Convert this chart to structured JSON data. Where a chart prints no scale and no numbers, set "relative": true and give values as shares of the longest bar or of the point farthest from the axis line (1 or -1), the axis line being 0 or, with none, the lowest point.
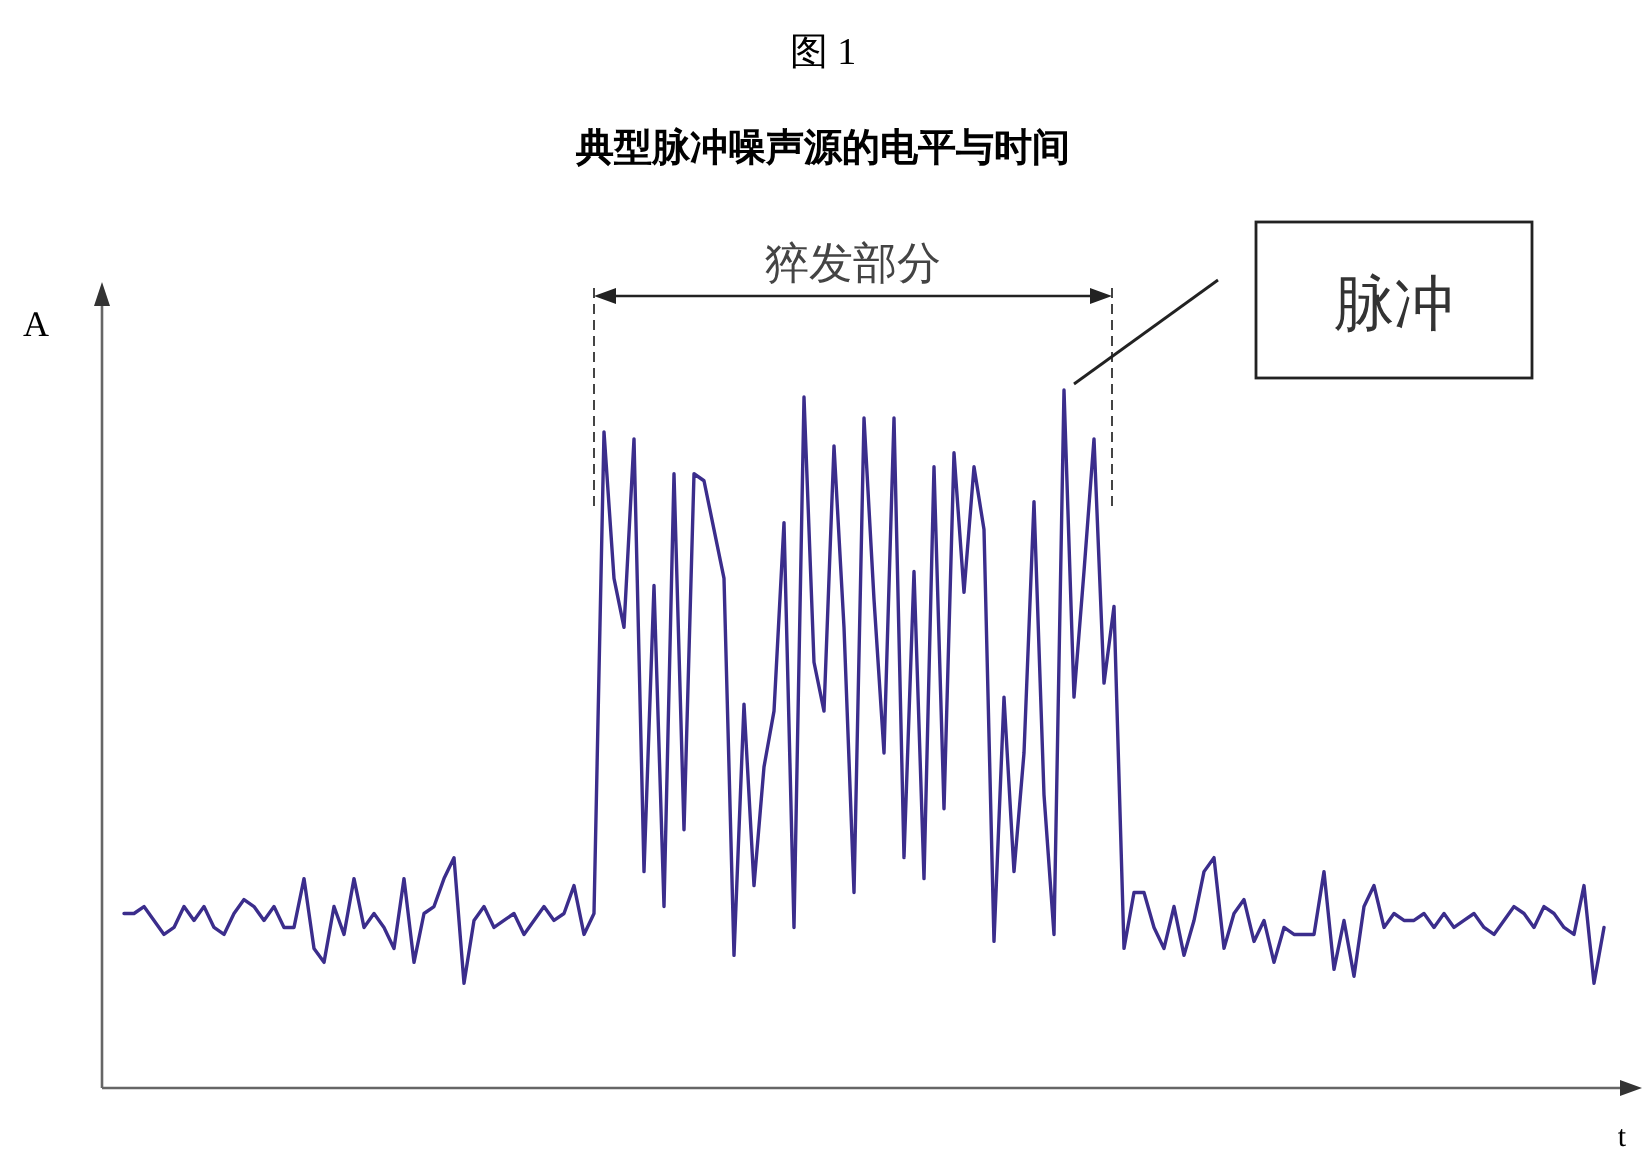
{
  "chart_data": {
    "type": "line",
    "subtitle": "图 1",
    "title": "典型脉冲噪声源的电平与时间",
    "xlabel": "t",
    "ylabel": "A",
    "relative": true,
    "categories": [
      null,
      null,
      null,
      null,
      null,
      null,
      null,
      null,
      null,
      null,
      null,
      null,
      null,
      null,
      null,
      null,
      null,
      null,
      null,
      null,
      null,
      null,
      null,
      null,
      null,
      null,
      null,
      null,
      null,
      null,
      null,
      null,
      null,
      null,
      null,
      null,
      null,
      null,
      null,
      null,
      null,
      null,
      null,
      null,
      null,
      null,
      null,
      null,
      null,
      null,
      null,
      null,
      null,
      null,
      null,
      null,
      null,
      null,
      null,
      null,
      null,
      null,
      null,
      null,
      null,
      null,
      null,
      null,
      null,
      null,
      null,
      null,
      null,
      null,
      null,
      null,
      null,
      null,
      null,
      null,
      null,
      null,
      null,
      null,
      null,
      null,
      null,
      null,
      null,
      null,
      null,
      null,
      null,
      null,
      null,
      null,
      null,
      null,
      null,
      null,
      null,
      null,
      null,
      null,
      null,
      null,
      null,
      null,
      null,
      null,
      null,
      null,
      null,
      null,
      null,
      null,
      null,
      null,
      null,
      null,
      null,
      null,
      null,
      null,
      null,
      null,
      null,
      null,
      null,
      null,
      null,
      null,
      null,
      null,
      null,
      null,
      null,
      null,
      null,
      null,
      null,
      null,
      null,
      null,
      null,
      null,
      null,
      null,
      null
    ],
    "series": [
      {
        "color": "#3b2d8c",
        "values": [
          0.25,
          0.25,
          0.26,
          0.24,
          0.22,
          0.23,
          0.26,
          0.24,
          0.26,
          0.23,
          0.22,
          0.25,
          0.27,
          0.26,
          0.24,
          0.26,
          0.23,
          0.23,
          0.3,
          0.2,
          0.18,
          0.26,
          0.22,
          0.3,
          0.23,
          0.25,
          0.23,
          0.2,
          0.3,
          0.18,
          0.25,
          0.26,
          0.3,
          0.33,
          0.15,
          0.24,
          0.26,
          0.23,
          0.24,
          0.25,
          0.22,
          0.24,
          0.26,
          0.24,
          0.25,
          0.29,
          0.22,
          0.25,
          0.94,
          0.73,
          0.66,
          0.93,
          0.31,
          0.72,
          0.26,
          0.88,
          0.37,
          0.88,
          0.87,
          0.8,
          0.73,
          0.19,
          0.55,
          0.29,
          0.46,
          0.54,
          0.81,
          0.23,
          0.99,
          0.61,
          0.54,
          0.92,
          0.66,
          0.28,
          0.96,
          0.7,
          0.48,
          0.96,
          0.33,
          0.74,
          0.3,
          0.89,
          0.4,
          0.91,
          0.71,
          0.89,
          0.8,
          0.21,
          0.56,
          0.31,
          0.48,
          0.84,
          0.42,
          0.22,
          1,
          0.56,
          0.74,
          0.93,
          0.58,
          0.69,
          0.2,
          0.28,
          0.28,
          0.23,
          0.2,
          0.26,
          0.19,
          0.24,
          0.31,
          0.33,
          0.2,
          0.25,
          0.27,
          0.21,
          0.24,
          0.18,
          0.23,
          0.22,
          0.22,
          0.22,
          0.31,
          0.17,
          0.24,
          0.16,
          0.26,
          0.29,
          0.23,
          0.25,
          0.24,
          0.24,
          0.25,
          0.23,
          0.25,
          0.23,
          0.24,
          0.25,
          0.23,
          0.22,
          0.24,
          0.26,
          0.25,
          0.23,
          0.26,
          0.25,
          0.23,
          0.22,
          0.29,
          0.15,
          0.23
        ]
      }
    ],
    "annotations": [
      "猝发部分",
      "脉冲"
    ]
  }
}
